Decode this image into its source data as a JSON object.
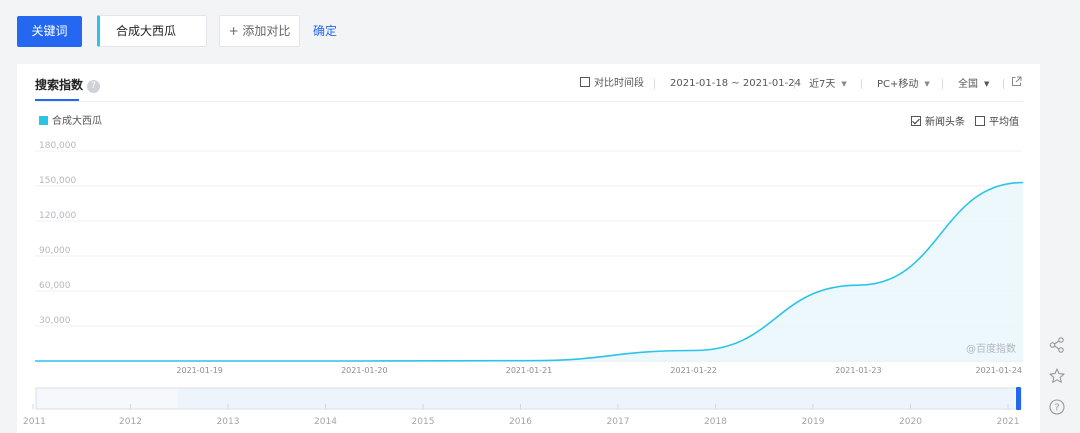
{
  "toolbar": {
    "keyword_button": "关键词",
    "keyword_value": "合成大西瓜",
    "add_compare": "+ 添加对比",
    "confirm": "确定"
  },
  "panel": {
    "title": "搜索指数",
    "help": "?",
    "compare_period": "对比时间段",
    "date_range": "2021-01-18 ~ 2021-01-24",
    "period": "近7天",
    "device": "PC+移动",
    "region": "全国",
    "legend": "合成大西瓜",
    "news_label": "新闻头条",
    "average_label": "平均值",
    "watermark": "@百度指数"
  },
  "colors": {
    "accent": "#2468f2",
    "series": "#2bc4e8",
    "area": "#e9f7fc"
  },
  "icons": [
    "help-icon",
    "external-link-icon",
    "share-icon",
    "star-icon",
    "question-icon"
  ],
  "chart_data": {
    "type": "area",
    "x": [
      "2021-01-18",
      "2021-01-19",
      "2021-01-20",
      "2021-01-21",
      "2021-01-22",
      "2021-01-23",
      "2021-01-24"
    ],
    "x_tick_labels": [
      "2021-01-19",
      "2021-01-20",
      "2021-01-21",
      "2021-01-22",
      "2021-01-23",
      "2021-01-24"
    ],
    "series": [
      {
        "name": "合成大西瓜",
        "values": [
          0,
          0,
          0,
          300,
          9000,
          65000,
          153000
        ]
      }
    ],
    "y_ticks": [
      "30,000",
      "60,000",
      "90,000",
      "120,000",
      "150,000",
      "180,000"
    ],
    "ylim": [
      0,
      180000
    ],
    "grid": true,
    "legend_position": "top-left"
  },
  "timeline": {
    "years": [
      "2011",
      "2012",
      "2013",
      "2014",
      "2015",
      "2016",
      "2017",
      "2018",
      "2019",
      "2020",
      "2021"
    ]
  }
}
